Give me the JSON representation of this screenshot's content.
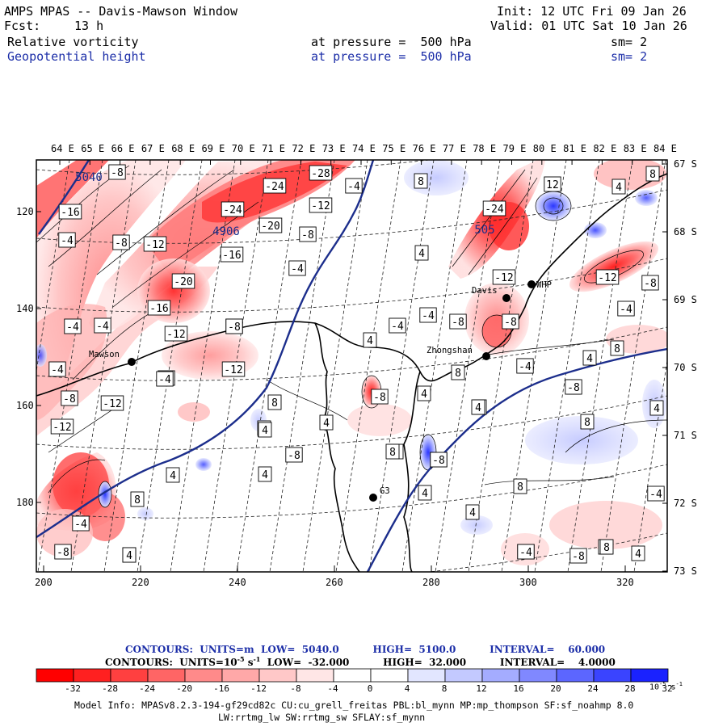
{
  "header": {
    "title": "AMPS MPAS -- Davis-Mawson Window",
    "fcst_label": "Fcst:",
    "fcst_value": "13 h",
    "init": "Init: 12 UTC Fri 09 Jan 26",
    "valid": "Valid: 01 UTC Sat 10 Jan 26",
    "fields": [
      {
        "name": "Relative vorticity",
        "level": "at pressure =  500 hPa",
        "sm": "sm= 2"
      },
      {
        "name": "Geopotential height",
        "level": "at pressure =  500 hPa",
        "sm": "sm= 2"
      }
    ]
  },
  "axes": {
    "top_lon": [
      "64 E",
      "65 E",
      "66 E",
      "67 E",
      "68 E",
      "69 E",
      "70 E",
      "71 E",
      "72 E",
      "73 E",
      "74 E",
      "75 E",
      "76 E",
      "77 E",
      "78 E",
      "79 E",
      "80 E",
      "81 E",
      "82 E",
      "83 E",
      "84 E"
    ],
    "right_lat": [
      "67 S",
      "68 S",
      "69 S",
      "70 S",
      "71 S",
      "72 S",
      "73 S"
    ],
    "bottom_x": [
      "200",
      "220",
      "240",
      "260",
      "280",
      "300",
      "320"
    ],
    "left_y": [
      "120",
      "140",
      "160",
      "180"
    ]
  },
  "places": [
    {
      "name": "Mawson"
    },
    {
      "name": "Davis"
    },
    {
      "name": "Zhongshan"
    },
    {
      "name": "WHP"
    },
    {
      "name": "G3"
    }
  ],
  "contour_labels": {
    "height": [
      "5040",
      "4906",
      "505"
    ],
    "vorticity": [
      "-8",
      "-16",
      "-4",
      "-8",
      "-12",
      "-24",
      "-20",
      "-28",
      "-24",
      "-12",
      "-8",
      "-16",
      "-20",
      "-16",
      "-12",
      "-8",
      "-4",
      "-4",
      "-4",
      "-4",
      "-12",
      "-8",
      "-4",
      "-8",
      "-12",
      "-4",
      "-8",
      "-4",
      "4",
      "4",
      "8",
      "8",
      "4",
      "8",
      "-24",
      "4",
      "-12",
      "-8",
      "-4",
      "-4",
      "-8",
      "-12",
      "-8",
      "-4",
      "4",
      "8",
      "4",
      "8",
      "4",
      "8",
      "12",
      "-12",
      "-8",
      "-4",
      "8",
      "8",
      "4",
      "8",
      "4",
      "-4",
      "-8",
      "8",
      "4",
      "4",
      "8",
      "-4",
      "-8",
      "8",
      "4",
      "-8",
      "-4",
      "4",
      "4",
      "4",
      "8",
      "-8",
      "4",
      "8",
      "4",
      "-4",
      "-8",
      "4"
    ]
  },
  "info": {
    "contours1": "CONTOURS:  UNITS=m  LOW=  5040.0          HIGH=  5100.0          INTERVAL=    60.000",
    "contours2_a": "CONTOURS:  UNITS=10",
    "contours2_sup": "-5",
    "contours2_b": " s",
    "contours2_sup2": "-1",
    "contours2_c": "  LOW=  -32.000          HIGH=  32.000          INTERVAL=    4.0000"
  },
  "colorbar": {
    "ticks": [
      "-32",
      "-28",
      "-24",
      "-20",
      "-16",
      "-12",
      "-8",
      "-4",
      "0",
      "4",
      "8",
      "12",
      "16",
      "20",
      "24",
      "28",
      "32"
    ],
    "unit": "10",
    "unit_sup": "-5",
    "unit_tail": " s",
    "unit_sup2": "-1",
    "colors": [
      "#ff0000",
      "#ff2020",
      "#ff4040",
      "#ff6565",
      "#ff8a8a",
      "#ffa8a8",
      "#ffc8c8",
      "#ffe6e6",
      "#ffffff",
      "#ffffff",
      "#e2e6ff",
      "#c3c9ff",
      "#a4acff",
      "#8088ff",
      "#5c66ff",
      "#3a44ff",
      "#1a22ff"
    ]
  },
  "model_info": {
    "line1": "Model Info: MPASv8.2.3-194-gf29cd82c CU:cu_grell_freitas PBL:bl_mynn MP:mp_thompson SF:sf_noahmp 8.0",
    "line2": "LW:rrtmg_lw SW:rrtmg_sw SFLAY:sf_mynn"
  }
}
